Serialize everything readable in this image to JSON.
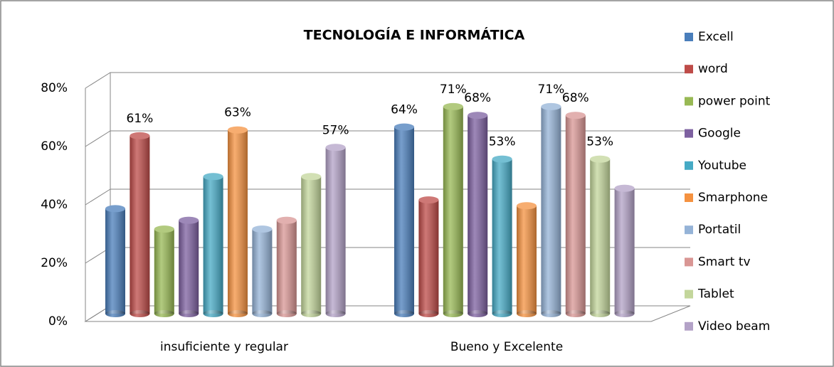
{
  "chart_data": {
    "type": "bar",
    "title": "TECNOLOGÍA E INFORMÁTICA",
    "categories": [
      "insuficiente y  regular",
      "Bueno y Excelente"
    ],
    "series": [
      {
        "name": "Excell",
        "color": "#4a7ebb",
        "values": [
          36,
          64
        ],
        "value_labels": [
          null,
          "64%"
        ]
      },
      {
        "name": "word",
        "color": "#be4b48",
        "values": [
          61,
          39
        ],
        "value_labels": [
          "61%",
          null
        ]
      },
      {
        "name": "power point",
        "color": "#98b954",
        "values": [
          29,
          71
        ],
        "value_labels": [
          null,
          "71%"
        ]
      },
      {
        "name": "Google",
        "color": "#7d60a0",
        "values": [
          32,
          68
        ],
        "value_labels": [
          null,
          "68%"
        ]
      },
      {
        "name": "Youtube",
        "color": "#46aac5",
        "values": [
          47,
          53
        ],
        "value_labels": [
          null,
          "53%"
        ]
      },
      {
        "name": "Smarphone",
        "color": "#f59240",
        "values": [
          63,
          37
        ],
        "value_labels": [
          "63%",
          null
        ]
      },
      {
        "name": "Portatil",
        "color": "#95b3d7",
        "values": [
          29,
          71
        ],
        "value_labels": [
          null,
          "71%"
        ]
      },
      {
        "name": "Smart tv",
        "color": "#d99694",
        "values": [
          32,
          68
        ],
        "value_labels": [
          null,
          "68%"
        ]
      },
      {
        "name": "Tablet",
        "color": "#c3d69b",
        "values": [
          47,
          53
        ],
        "value_labels": [
          null,
          "53%"
        ]
      },
      {
        "name": "Video beam",
        "color": "#b3a2c7",
        "values": [
          57,
          43
        ],
        "value_labels": [
          "57%",
          null
        ]
      }
    ],
    "ylim": [
      0,
      80
    ],
    "yticks": [
      {
        "value": 0,
        "label": "0%"
      },
      {
        "value": 20,
        "label": "20%"
      },
      {
        "value": 40,
        "label": "40%"
      },
      {
        "value": 60,
        "label": "60%"
      },
      {
        "value": 80,
        "label": "80%"
      }
    ],
    "grid": true,
    "legend": "right"
  }
}
